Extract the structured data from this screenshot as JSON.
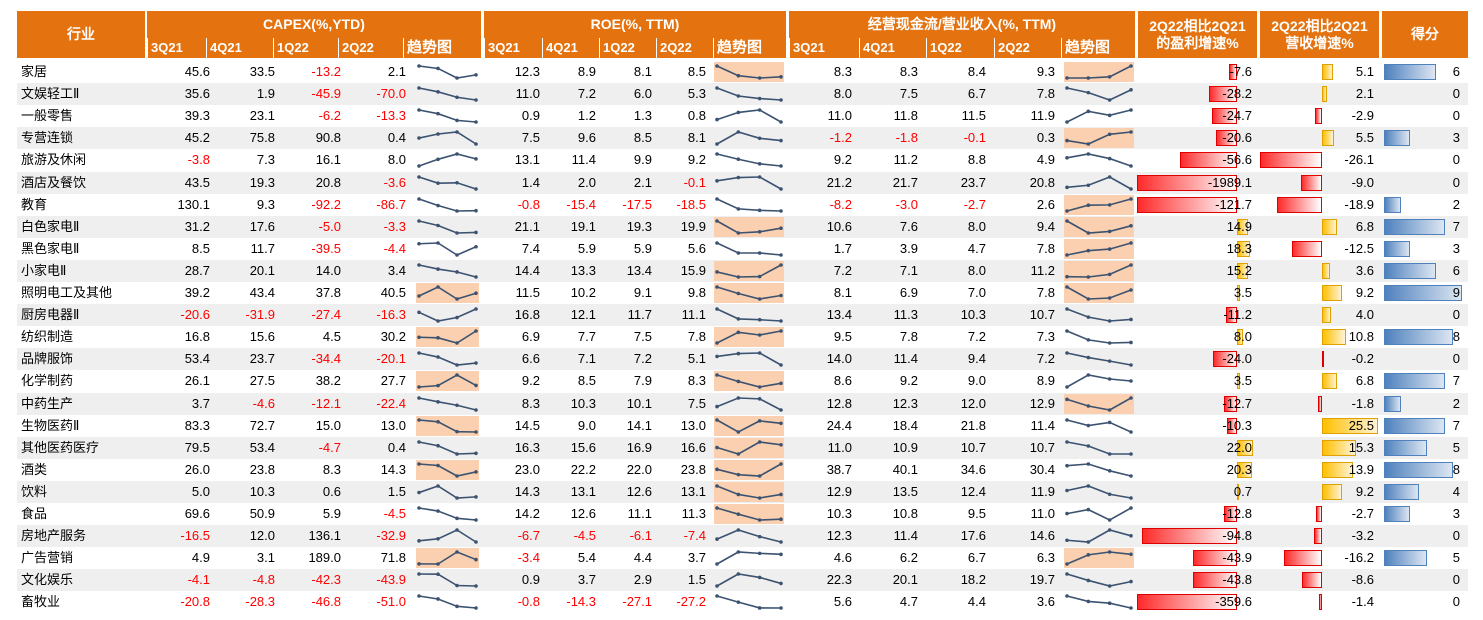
{
  "headers": {
    "industry": "行业",
    "capex": "CAPEX(%,YTD)",
    "roe": "ROE(%, TTM)",
    "cf": "经营现金流/营业收入(%, TTM)",
    "profit_growth": "2Q22相比2Q21\n的盈利增速%",
    "rev_growth": "2Q22相比2Q21\n营收增速%",
    "score": "得分",
    "quarters": [
      "3Q21",
      "4Q21",
      "1Q22",
      "2Q22"
    ],
    "trend": "趋势图"
  },
  "colors": {
    "header": "#E4730F",
    "negative": "#FF0000",
    "spark_highlight": "#FAD0B0",
    "sparkline": "#3B5270",
    "row_alt": "#EFEFEF"
  },
  "rows": [
    {
      "industry": "家居",
      "capex": [
        45.6,
        33.5,
        -13.2,
        2.1
      ],
      "roe": [
        12.3,
        8.9,
        8.1,
        8.5
      ],
      "cf": [
        8.3,
        8.3,
        8.4,
        9.3
      ],
      "profit": -7.6,
      "rev": 5.1,
      "score": 6,
      "hl": [
        false,
        true,
        true
      ]
    },
    {
      "industry": "文娱轻工Ⅱ",
      "capex": [
        35.6,
        1.9,
        -45.9,
        -70.0
      ],
      "roe": [
        11.0,
        7.2,
        6.0,
        5.3
      ],
      "cf": [
        8.0,
        7.5,
        6.7,
        7.8
      ],
      "profit": -28.2,
      "rev": 2.1,
      "score": 0,
      "hl": [
        false,
        false,
        false
      ]
    },
    {
      "industry": "一般零售",
      "capex": [
        39.3,
        23.1,
        -6.2,
        -13.3
      ],
      "roe": [
        0.9,
        1.2,
        1.3,
        0.8
      ],
      "cf": [
        11.0,
        11.8,
        11.5,
        11.9
      ],
      "profit": -24.7,
      "rev": -2.9,
      "score": 0,
      "hl": [
        false,
        false,
        false
      ]
    },
    {
      "industry": "专营连锁",
      "capex": [
        45.2,
        75.8,
        90.8,
        0.4
      ],
      "roe": [
        7.5,
        9.6,
        8.5,
        8.1
      ],
      "cf": [
        -1.2,
        -1.8,
        -0.1,
        0.3
      ],
      "profit": -20.6,
      "rev": 5.5,
      "score": 3,
      "hl": [
        false,
        false,
        true
      ]
    },
    {
      "industry": "旅游及休闲",
      "capex": [
        -3.8,
        7.3,
        16.1,
        8.0
      ],
      "roe": [
        13.1,
        11.4,
        9.9,
        9.2
      ],
      "cf": [
        9.2,
        11.2,
        8.8,
        4.9
      ],
      "profit": -56.6,
      "rev": -26.1,
      "score": 0,
      "hl": [
        false,
        false,
        false
      ]
    },
    {
      "industry": "酒店及餐饮",
      "capex": [
        43.5,
        19.3,
        20.8,
        -3.6
      ],
      "roe": [
        1.4,
        2.0,
        2.1,
        -0.1
      ],
      "cf": [
        21.2,
        21.7,
        23.7,
        20.8
      ],
      "profit": -1989.1,
      "rev": -9.0,
      "score": 0,
      "hl": [
        false,
        false,
        false
      ]
    },
    {
      "industry": "教育",
      "capex": [
        130.1,
        9.3,
        -92.2,
        -86.7
      ],
      "roe": [
        -0.8,
        -15.4,
        -17.5,
        -18.5
      ],
      "cf": [
        -8.2,
        -3.0,
        -2.7,
        2.6
      ],
      "profit": -121.7,
      "rev": -18.9,
      "score": 2,
      "hl": [
        false,
        false,
        true
      ]
    },
    {
      "industry": "白色家电Ⅱ",
      "capex": [
        31.2,
        17.6,
        -5.0,
        -3.3
      ],
      "roe": [
        21.1,
        19.1,
        19.3,
        19.9
      ],
      "cf": [
        10.6,
        7.6,
        8.0,
        9.4
      ],
      "profit": 14.9,
      "rev": 6.8,
      "score": 7,
      "hl": [
        false,
        true,
        true
      ]
    },
    {
      "industry": "黑色家电Ⅱ",
      "capex": [
        8.5,
        11.7,
        -39.5,
        -4.4
      ],
      "roe": [
        7.4,
        5.9,
        5.9,
        5.6
      ],
      "cf": [
        1.7,
        3.9,
        4.7,
        7.8
      ],
      "profit": 18.3,
      "rev": -12.5,
      "score": 3,
      "hl": [
        false,
        false,
        true
      ]
    },
    {
      "industry": "小家电Ⅱ",
      "capex": [
        28.7,
        20.1,
        14.0,
        3.4
      ],
      "roe": [
        14.4,
        13.3,
        13.4,
        15.9
      ],
      "cf": [
        7.2,
        7.1,
        8.0,
        11.2
      ],
      "profit": 15.2,
      "rev": 3.6,
      "score": 6,
      "hl": [
        false,
        true,
        true
      ]
    },
    {
      "industry": "照明电工及其他",
      "capex": [
        39.2,
        43.4,
        37.8,
        40.5
      ],
      "roe": [
        11.5,
        10.2,
        9.1,
        9.8
      ],
      "cf": [
        8.1,
        6.9,
        7.0,
        7.8
      ],
      "profit": 3.5,
      "rev": 9.2,
      "score": 9,
      "hl": [
        true,
        true,
        true
      ]
    },
    {
      "industry": "厨房电器Ⅱ",
      "capex": [
        -20.6,
        -31.9,
        -27.4,
        -16.3
      ],
      "roe": [
        16.8,
        12.1,
        11.7,
        11.1
      ],
      "cf": [
        13.4,
        11.3,
        10.3,
        10.7
      ],
      "profit": -11.2,
      "rev": 4.0,
      "score": 0,
      "hl": [
        false,
        false,
        false
      ]
    },
    {
      "industry": "纺织制造",
      "capex": [
        16.8,
        15.6,
        4.5,
        30.2
      ],
      "roe": [
        6.9,
        7.7,
        7.5,
        7.8
      ],
      "cf": [
        9.5,
        7.8,
        7.2,
        7.3
      ],
      "profit": 8.0,
      "rev": 10.8,
      "score": 8,
      "hl": [
        true,
        true,
        false
      ]
    },
    {
      "industry": "品牌服饰",
      "capex": [
        53.4,
        23.7,
        -34.4,
        -20.1
      ],
      "roe": [
        6.6,
        7.1,
        7.2,
        5.1
      ],
      "cf": [
        14.0,
        11.4,
        9.4,
        7.2
      ],
      "profit": -24.0,
      "rev": -0.2,
      "score": 0,
      "hl": [
        false,
        false,
        false
      ]
    },
    {
      "industry": "化学制药",
      "capex": [
        26.1,
        27.5,
        38.2,
        27.7
      ],
      "roe": [
        9.2,
        8.5,
        7.9,
        8.3
      ],
      "cf": [
        8.6,
        9.2,
        9.0,
        8.9
      ],
      "profit": 3.5,
      "rev": 6.8,
      "score": 7,
      "hl": [
        true,
        true,
        false
      ]
    },
    {
      "industry": "中药生产",
      "capex": [
        3.7,
        -4.6,
        -12.1,
        -22.4
      ],
      "roe": [
        8.3,
        10.3,
        10.1,
        7.5
      ],
      "cf": [
        12.8,
        12.3,
        12.0,
        12.9
      ],
      "profit": -12.7,
      "rev": -1.8,
      "score": 2,
      "hl": [
        false,
        false,
        true
      ]
    },
    {
      "industry": "生物医药Ⅱ",
      "capex": [
        83.3,
        72.7,
        15.0,
        13.0
      ],
      "roe": [
        14.5,
        9.0,
        14.1,
        13.0
      ],
      "cf": [
        24.4,
        18.4,
        21.8,
        11.4
      ],
      "profit": -10.3,
      "rev": 25.5,
      "score": 7,
      "hl": [
        true,
        true,
        false
      ]
    },
    {
      "industry": "其他医药医疗",
      "capex": [
        79.5,
        53.4,
        -4.7,
        0.4
      ],
      "roe": [
        16.3,
        15.6,
        16.9,
        16.6
      ],
      "cf": [
        11.0,
        10.9,
        10.7,
        10.7
      ],
      "profit": 22.0,
      "rev": 15.3,
      "score": 5,
      "hl": [
        false,
        true,
        false
      ]
    },
    {
      "industry": "酒类",
      "capex": [
        26.0,
        23.8,
        8.3,
        14.3
      ],
      "roe": [
        23.0,
        22.2,
        22.0,
        23.8
      ],
      "cf": [
        38.7,
        40.1,
        34.6,
        30.4
      ],
      "profit": 20.3,
      "rev": 13.9,
      "score": 8,
      "hl": [
        true,
        true,
        false
      ]
    },
    {
      "industry": "饮料",
      "capex": [
        5.0,
        10.3,
        0.6,
        1.5
      ],
      "roe": [
        14.3,
        13.1,
        12.6,
        13.1
      ],
      "cf": [
        12.9,
        13.5,
        12.4,
        11.9
      ],
      "profit": 0.7,
      "rev": 9.2,
      "score": 4,
      "hl": [
        false,
        true,
        false
      ]
    },
    {
      "industry": "食品",
      "capex": [
        69.6,
        50.9,
        5.9,
        -4.5
      ],
      "roe": [
        14.2,
        12.6,
        11.1,
        11.3
      ],
      "cf": [
        10.3,
        10.8,
        9.5,
        11.0
      ],
      "profit": -12.8,
      "rev": -2.7,
      "score": 3,
      "hl": [
        false,
        true,
        false
      ]
    },
    {
      "industry": "房地产服务",
      "capex": [
        -16.5,
        12.0,
        136.1,
        -32.9
      ],
      "roe": [
        -6.7,
        -4.5,
        -6.1,
        -7.4
      ],
      "cf": [
        12.3,
        11.4,
        17.6,
        14.6
      ],
      "profit": -94.8,
      "rev": -3.2,
      "score": 0,
      "hl": [
        false,
        false,
        false
      ]
    },
    {
      "industry": "广告营销",
      "capex": [
        4.9,
        3.1,
        189.0,
        71.8
      ],
      "roe": [
        -3.4,
        5.4,
        4.4,
        3.7
      ],
      "cf": [
        4.6,
        6.2,
        6.7,
        6.3
      ],
      "profit": -43.9,
      "rev": -16.2,
      "score": 5,
      "hl": [
        true,
        false,
        true
      ]
    },
    {
      "industry": "文化娱乐",
      "capex": [
        -4.1,
        -4.8,
        -42.3,
        -43.9
      ],
      "roe": [
        0.9,
        3.7,
        2.9,
        1.5
      ],
      "cf": [
        22.3,
        20.1,
        18.2,
        19.7
      ],
      "profit": -43.8,
      "rev": -8.6,
      "score": 0,
      "hl": [
        false,
        false,
        false
      ]
    },
    {
      "industry": "畜牧业",
      "capex": [
        -20.8,
        -28.3,
        -46.8,
        -51.0
      ],
      "roe": [
        -0.8,
        -14.3,
        -27.1,
        -27.2
      ],
      "cf": [
        5.6,
        4.7,
        4.4,
        3.6
      ],
      "profit": -359.6,
      "rev": -1.4,
      "score": 0,
      "hl": [
        false,
        false,
        false
      ]
    }
  ]
}
